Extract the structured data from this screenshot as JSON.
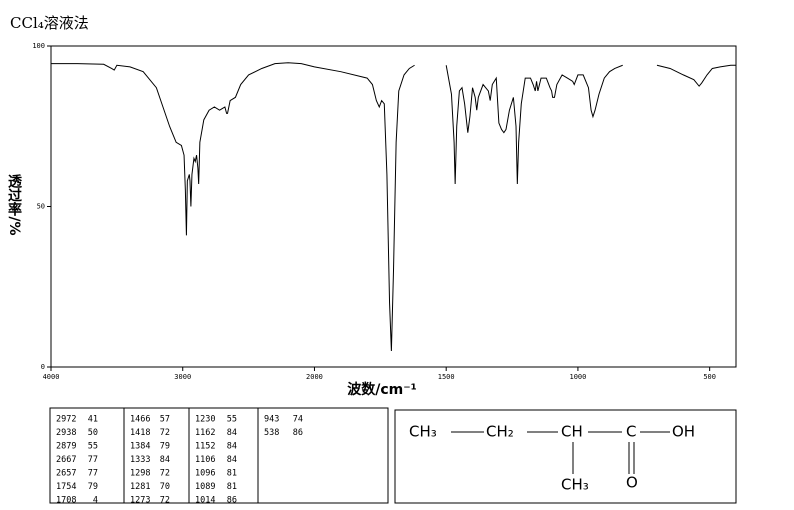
{
  "chart_data": {
    "type": "line",
    "title": "CCl₄溶液法",
    "ylabel": "透过率/%",
    "xlabel": "波数/cm⁻¹",
    "xlim": [
      4000,
      400
    ],
    "xticks": [
      4000,
      3000,
      2000,
      1500,
      1000,
      500
    ],
    "ylim": [
      0,
      100
    ],
    "yticks": [
      0,
      50,
      100
    ],
    "color": "#000000",
    "x": [
      4000,
      3800,
      3600,
      3540,
      3520,
      3500,
      3400,
      3300,
      3200,
      3150,
      3100,
      3050,
      3010,
      2990,
      2980,
      2972,
      2965,
      2950,
      2945,
      2938,
      2930,
      2915,
      2905,
      2895,
      2885,
      2879,
      2870,
      2840,
      2800,
      2760,
      2720,
      2700,
      2680,
      2667,
      2660,
      2640,
      2600,
      2560,
      2500,
      2400,
      2300,
      2200,
      2100,
      2000,
      1900,
      1800,
      1780,
      1765,
      1754,
      1745,
      1735,
      1725,
      1715,
      1708,
      1700,
      1690,
      1680,
      1660,
      1640,
      1620,
      1560,
      1500,
      1480,
      1470,
      1466,
      1460,
      1450,
      1440,
      1430,
      1418,
      1410,
      1400,
      1390,
      1384,
      1378,
      1360,
      1340,
      1333,
      1325,
      1310,
      1300,
      1290,
      1281,
      1273,
      1260,
      1245,
      1235,
      1230,
      1225,
      1215,
      1200,
      1180,
      1170,
      1162,
      1157,
      1152,
      1140,
      1120,
      1106,
      1100,
      1096,
      1089,
      1080,
      1060,
      1040,
      1020,
      1014,
      1000,
      980,
      960,
      950,
      943,
      935,
      920,
      900,
      880,
      860,
      830,
      760,
      700,
      650,
      600,
      560,
      540,
      530,
      510,
      490,
      460,
      420,
      400
    ],
    "values": [
      94.5,
      94.5,
      94.3,
      93,
      92.5,
      94,
      93.5,
      92,
      87,
      81,
      75,
      70,
      69,
      66,
      55,
      41,
      58,
      60,
      58,
      50,
      60,
      65,
      64,
      66,
      62,
      57,
      70,
      77,
      80,
      81,
      80,
      80.5,
      81,
      79,
      79,
      83,
      84,
      88,
      91,
      93,
      94.5,
      94.8,
      94.5,
      93.5,
      92,
      90,
      88,
      83,
      81,
      83,
      82,
      60,
      20,
      5,
      30,
      70,
      86,
      91,
      93,
      94,
      null,
      94,
      85,
      70,
      57,
      75,
      86,
      87,
      82,
      73,
      78,
      87,
      84,
      80,
      84,
      88,
      86,
      83,
      88,
      90,
      76,
      74,
      73,
      74,
      80,
      84,
      75,
      57,
      70,
      82,
      90,
      90,
      88,
      86,
      89,
      86,
      90,
      90,
      87,
      86,
      84,
      84,
      88,
      91,
      90,
      89,
      88,
      91,
      91,
      87,
      80,
      78,
      80,
      85,
      90,
      92,
      93,
      94,
      null,
      94,
      93,
      91,
      89.5,
      87.5,
      88.5,
      91,
      93,
      93.5,
      94,
      94
    ]
  },
  "peak_table": [
    [
      2972,
      41
    ],
    [
      2938,
      50
    ],
    [
      2879,
      55
    ],
    [
      2667,
      77
    ],
    [
      2657,
      77
    ],
    [
      1754,
      79
    ],
    [
      1708,
      4
    ],
    [
      1466,
      57
    ],
    [
      1418,
      72
    ],
    [
      1384,
      79
    ],
    [
      1333,
      84
    ],
    [
      1298,
      72
    ],
    [
      1281,
      70
    ],
    [
      1273,
      72
    ],
    [
      1230,
      55
    ],
    [
      1162,
      84
    ],
    [
      1152,
      84
    ],
    [
      1106,
      84
    ],
    [
      1096,
      81
    ],
    [
      1089,
      81
    ],
    [
      1014,
      86
    ],
    [
      943,
      74
    ],
    [
      538,
      86
    ]
  ],
  "structure": {
    "main": [
      "CH₃",
      "CH₂",
      "CH",
      "C",
      "OH"
    ],
    "branch": "CH₃",
    "carbonyl": "O"
  }
}
